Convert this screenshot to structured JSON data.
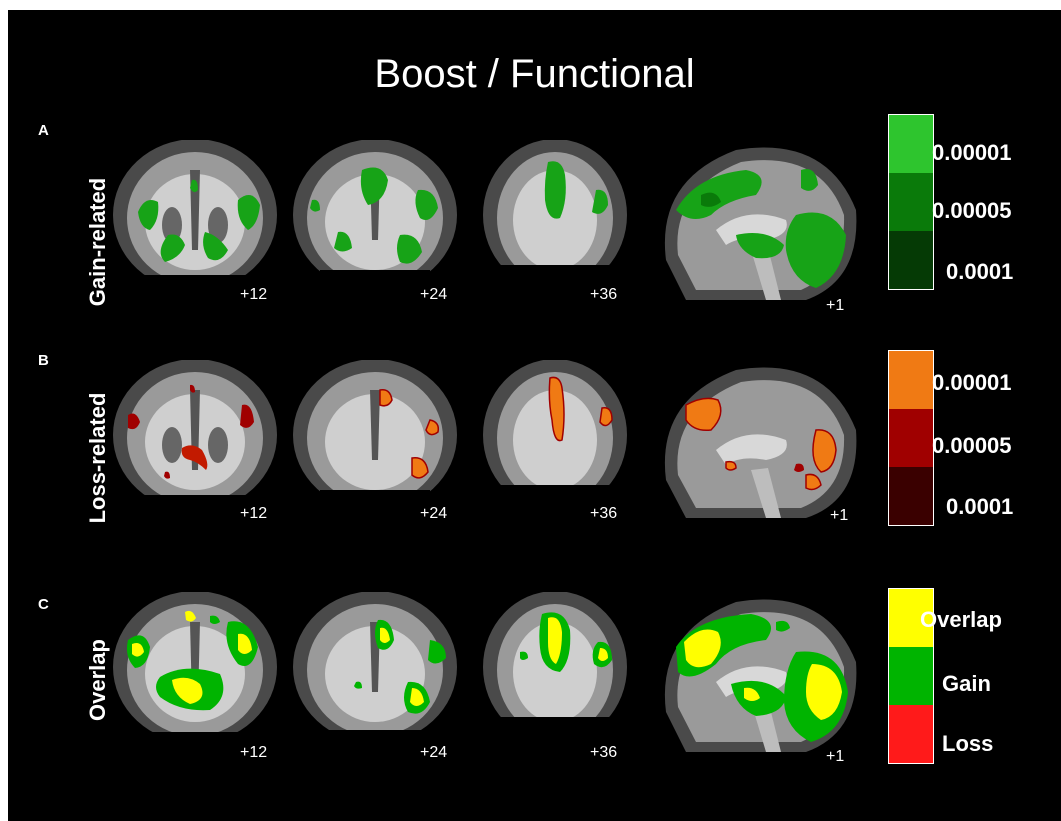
{
  "title": "Boost / Functional",
  "colors": {
    "background": "#000000",
    "gain_strong": "#2ec52e",
    "gain_mid": "#0a7a0a",
    "gain_weak": "#053a05",
    "loss_strong": "#f07a14",
    "loss_mid": "#a00000",
    "loss_weak": "#3a0000",
    "overlap": "#ffff00",
    "overlap_gain": "#00b400",
    "overlap_loss": "#ff1a1a"
  },
  "rows": [
    {
      "letter": "A",
      "label": "Gain-related",
      "slices": [
        "+12",
        "+24",
        "+36",
        "+1"
      ],
      "scale": [
        {
          "label": "0.00001",
          "color": "#2ec52e"
        },
        {
          "label": "0.00005",
          "color": "#0a7a0a"
        },
        {
          "label": "0.0001",
          "color": "#053a05"
        }
      ]
    },
    {
      "letter": "B",
      "label": "Loss-related",
      "slices": [
        "+12",
        "+24",
        "+36",
        "+1"
      ],
      "scale": [
        {
          "label": "0.00001",
          "color": "#f07a14"
        },
        {
          "label": "0.00005",
          "color": "#a00000"
        },
        {
          "label": "0.0001",
          "color": "#3a0000"
        }
      ]
    },
    {
      "letter": "C",
      "label": "Overlap",
      "slices": [
        "+12",
        "+24",
        "+36",
        "+1"
      ],
      "scale": [
        {
          "label": "Overlap",
          "color": "#ffff00"
        },
        {
          "label": "Gain",
          "color": "#00b400"
        },
        {
          "label": "Loss",
          "color": "#ff1a1a"
        }
      ]
    }
  ]
}
